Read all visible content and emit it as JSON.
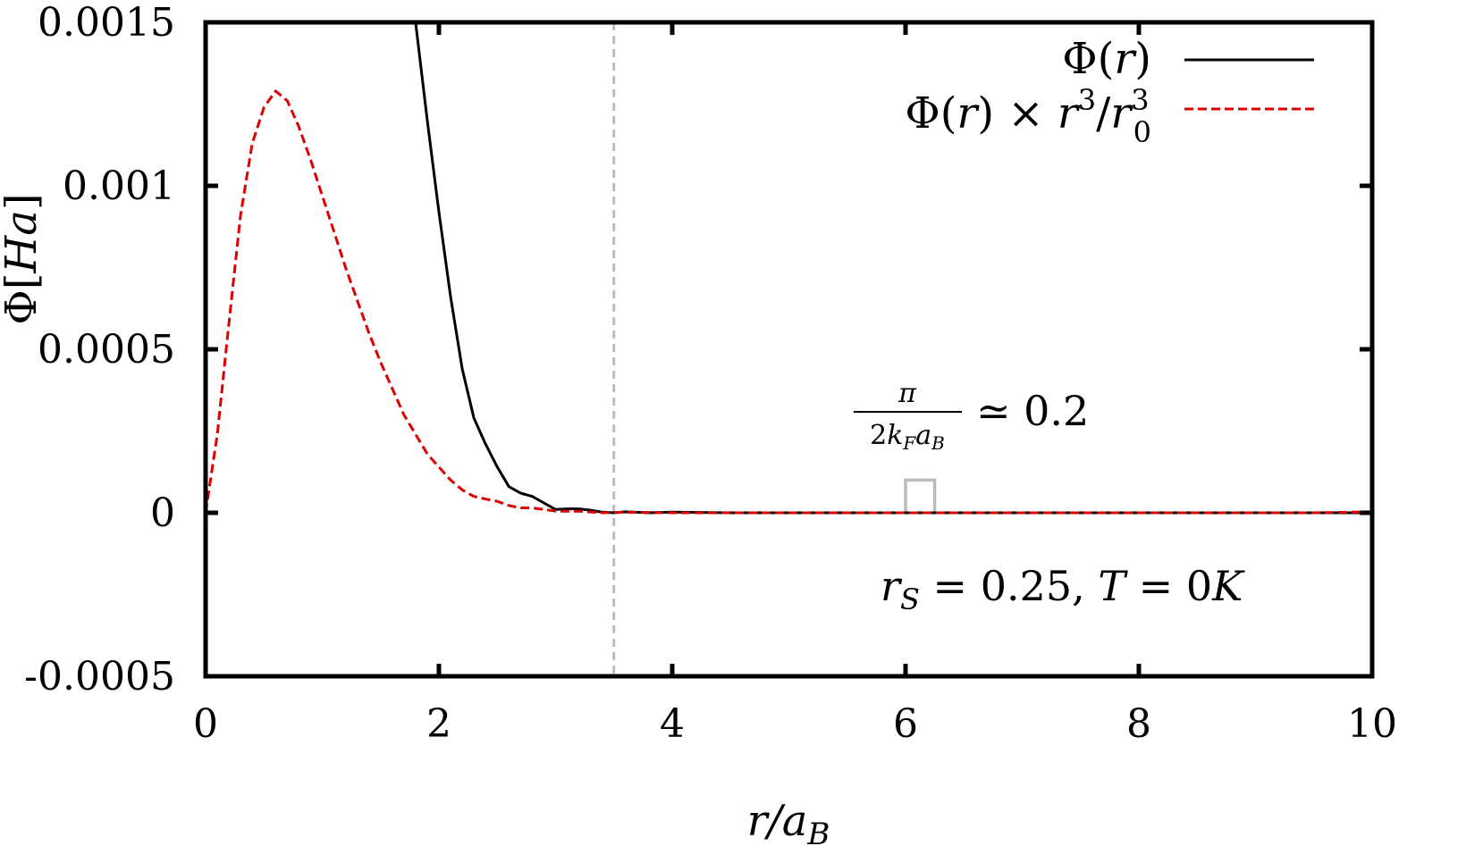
{
  "chart_data": {
    "type": "line",
    "title": "",
    "xlabel": "r/a_B",
    "ylabel": "Φ[Ha]",
    "xlim": [
      0,
      10
    ],
    "ylim": [
      -0.0005,
      0.0015
    ],
    "x_ticks": [
      0,
      2,
      4,
      6,
      8,
      10
    ],
    "x_tick_labels": [
      "0",
      "2",
      "4",
      "6",
      "8",
      "10"
    ],
    "y_ticks": [
      -0.0005,
      0,
      0.0005,
      0.001,
      0.0015
    ],
    "y_tick_labels": [
      "-0.0005",
      "0",
      "0.0005",
      "0.001",
      "0.0015"
    ],
    "grid": false,
    "legend_position": "top-right",
    "series": [
      {
        "name": "Φ(r)",
        "color": "#000000",
        "style": "solid",
        "x": [
          1.8,
          1.9,
          2.0,
          2.1,
          2.2,
          2.3,
          2.4,
          2.5,
          2.6,
          2.7,
          2.8,
          2.9,
          3.0,
          3.1,
          3.2,
          3.3,
          3.4,
          3.5,
          3.6,
          3.8,
          4.0,
          4.5,
          5.0,
          5.5,
          6.0,
          6.5,
          7.0,
          7.5,
          8.0,
          8.5,
          9.0,
          9.5,
          10.0
        ],
        "y": [
          0.0015,
          0.0012,
          0.00092,
          0.00066,
          0.00044,
          0.00029,
          0.00021,
          0.00014,
          8e-05,
          6e-05,
          5e-05,
          3e-05,
          1e-05,
          1.2e-05,
          1.2e-05,
          8e-06,
          2e-06,
          0.0,
          3e-06,
          0.0,
          2e-06,
          0.0,
          0.0,
          0.0,
          0.0,
          0.0,
          0.0,
          0.0,
          0.0,
          0.0,
          0.0,
          0.0,
          0.0
        ]
      },
      {
        "name": "Φ(r) × r³/r₀³",
        "color": "#dd0000",
        "style": "dashed",
        "x": [
          0.0,
          0.1,
          0.2,
          0.3,
          0.4,
          0.5,
          0.6,
          0.7,
          0.8,
          0.9,
          1.0,
          1.1,
          1.2,
          1.3,
          1.4,
          1.5,
          1.6,
          1.7,
          1.8,
          1.9,
          2.0,
          2.1,
          2.2,
          2.3,
          2.4,
          2.5,
          2.6,
          2.7,
          2.8,
          2.9,
          3.0,
          3.2,
          3.4,
          3.6,
          4.0,
          4.5,
          5.0,
          5.5,
          6.0,
          6.5,
          7.0,
          7.5,
          8.0,
          8.5,
          9.0,
          9.5,
          10.0
        ],
        "y": [
          0.0,
          0.00024,
          0.00058,
          0.00091,
          0.00113,
          0.00124,
          0.00129,
          0.00126,
          0.00118,
          0.00108,
          0.00097,
          0.00086,
          0.00075,
          0.00065,
          0.00055,
          0.00046,
          0.00038,
          0.0003,
          0.00024,
          0.00018,
          0.00014,
          0.0001,
          7e-05,
          5e-05,
          4.2e-05,
          3.5e-05,
          2.2e-05,
          1.5e-05,
          1.5e-05,
          1e-05,
          5e-06,
          5e-06,
          0.0,
          2e-06,
          0.0,
          0.0,
          0.0,
          0.0,
          0.0,
          0.0,
          0.0,
          0.0,
          0.0,
          0.0,
          0.0,
          0.0,
          3e-06
        ]
      }
    ],
    "vertical_line": {
      "x": 3.5,
      "color": "#bbbbbb",
      "style": "dashed"
    },
    "bracket": {
      "x1": 6.0,
      "x2": 6.25,
      "y_top": 0.0001,
      "y_bottom": 0.0,
      "color": "#bbbbbb"
    },
    "annotations": [
      {
        "id": "wavelength",
        "numerator": "π",
        "denominator": "2k_F a_B",
        "text": "≃ 0.2"
      },
      {
        "id": "params",
        "text": "r_S = 0.25, T = 0K"
      }
    ]
  }
}
